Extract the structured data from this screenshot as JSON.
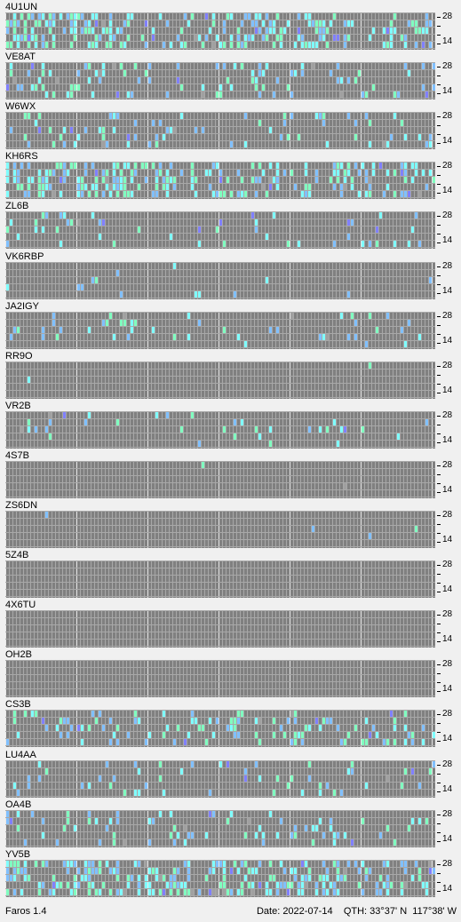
{
  "app": {
    "name": "Faros 1.4"
  },
  "status": {
    "date_label": "Date:",
    "date": "2022-07-14",
    "qth_label": "QTH:",
    "lat": "33°37' N",
    "lon": "117°38' W"
  },
  "scale_labels": {
    "top": "28",
    "bottom": "14"
  },
  "colors": {
    "cell_empty": "#808080",
    "grid_line": "#a8a8a8",
    "hour_line": "#e8e8e8",
    "signal_cyan": "#7fffff",
    "signal_lightblue": "#80c0ff",
    "signal_green": "#80ffc0",
    "signal_blue": "#8080ff",
    "signal_gray": "#a0a0a0"
  },
  "beacons": [
    {
      "call": "4U1UN"
    },
    {
      "call": "VE8AT"
    },
    {
      "call": "W6WX"
    },
    {
      "call": "KH6RS"
    },
    {
      "call": "ZL6B"
    },
    {
      "call": "VK6RBP"
    },
    {
      "call": "JA2IGY"
    },
    {
      "call": "RR9O"
    },
    {
      "call": "VR2B"
    },
    {
      "call": "4S7B"
    },
    {
      "call": "ZS6DN"
    },
    {
      "call": "5Z4B"
    },
    {
      "call": "4X6TU"
    },
    {
      "call": "OH2B"
    },
    {
      "call": "CS3B"
    },
    {
      "call": "LU4AA"
    },
    {
      "call": "OA4B"
    },
    {
      "call": "YV5B"
    }
  ],
  "activity_levels": [
    0.62,
    0.35,
    0.22,
    0.72,
    0.14,
    0.04,
    0.16,
    0.01,
    0.1,
    0.01,
    0.01,
    0.01,
    0.0,
    0.0,
    0.3,
    0.14,
    0.25,
    0.72
  ]
}
